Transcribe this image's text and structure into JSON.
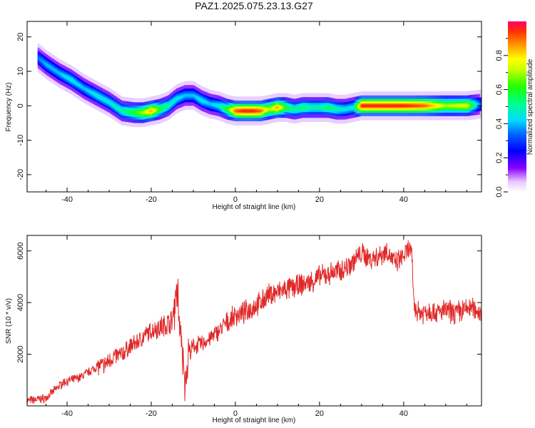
{
  "title": "PAZ1.2025.075.23.13.G27",
  "chart_data": [
    {
      "type": "heatmap",
      "xlabel": "Height of straight line (km)",
      "ylabel": "Frequency (Hz)",
      "xlim": [
        -49.5,
        58.5
      ],
      "ylim": [
        -25,
        24.5
      ],
      "xticks": [
        -40,
        -20,
        0,
        20,
        40
      ],
      "yticks": [
        -20,
        -10,
        0,
        10,
        20
      ],
      "colorbar": {
        "label": "Normalized spectral amplitude",
        "range": [
          0,
          1
        ],
        "ticks": [
          0.0,
          0.2,
          0.4,
          0.6,
          0.8
        ]
      },
      "ridge": {
        "x": [
          -47,
          -45,
          -42,
          -39,
          -36,
          -33,
          -30,
          -27,
          -24,
          -22,
          -20,
          -18,
          -16,
          -14,
          -12,
          -10,
          -8,
          -6,
          -4,
          -2,
          0,
          2,
          4,
          6,
          8,
          10,
          12,
          14,
          16,
          18,
          20,
          22,
          24,
          26,
          28,
          30,
          35,
          40,
          45,
          50,
          55,
          58.5
        ],
        "y": [
          14,
          12,
          9.5,
          7.5,
          5,
          3,
          1,
          -1.5,
          -2,
          -2,
          -1.5,
          -1,
          0,
          2,
          3,
          3,
          1.5,
          0.5,
          0,
          -1,
          -1.5,
          -1.5,
          -1.5,
          -1.5,
          -1,
          -0.5,
          -0.5,
          -1,
          -0.5,
          -0.5,
          -0.5,
          -0.5,
          -1,
          -1,
          -0.5,
          0,
          0,
          0,
          0,
          0,
          0,
          0.5
        ],
        "amplitude": [
          0.35,
          0.4,
          0.4,
          0.45,
          0.4,
          0.45,
          0.45,
          0.5,
          0.6,
          0.7,
          0.85,
          0.6,
          0.5,
          0.45,
          0.4,
          0.4,
          0.45,
          0.4,
          0.45,
          0.6,
          0.9,
          0.95,
          0.95,
          0.9,
          0.7,
          0.85,
          0.6,
          0.5,
          0.55,
          0.5,
          0.5,
          0.55,
          0.5,
          0.45,
          0.45,
          0.95,
          0.95,
          0.95,
          0.9,
          0.7,
          0.75,
          0.3
        ]
      }
    },
    {
      "type": "line",
      "xlabel": "Height of straight line (km)",
      "ylabel": "SNR (10 * v/v)",
      "xlim": [
        -49.5,
        58.5
      ],
      "ylim": [
        0,
        6600
      ],
      "xticks": [
        -40,
        -20,
        0,
        20,
        40
      ],
      "yticks": [
        2000,
        4000,
        6000
      ],
      "color": "#e02828",
      "series": [
        {
          "x": [
            -49.5,
            -47,
            -45,
            -43,
            -41,
            -39,
            -37,
            -35,
            -33,
            -31,
            -29,
            -27,
            -25,
            -23,
            -21,
            -19,
            -17,
            -15,
            -14,
            -13,
            -12.5,
            -12,
            -11.5,
            -11,
            -10,
            -8,
            -6,
            -4,
            -2,
            0,
            2,
            4,
            6,
            8,
            10,
            12,
            14,
            16,
            18,
            20,
            22,
            24,
            26,
            28,
            30,
            32,
            34,
            36,
            38,
            40,
            41.5,
            42,
            42.5,
            44,
            46,
            48,
            50,
            52,
            54,
            56,
            58.5
          ],
          "y": [
            200,
            250,
            300,
            600,
            900,
            1000,
            1100,
            1300,
            1500,
            1600,
            1900,
            2000,
            2300,
            2500,
            2800,
            3000,
            3100,
            3300,
            4500,
            3000,
            1800,
            700,
            1500,
            2000,
            2300,
            2400,
            2600,
            2900,
            3200,
            3500,
            3600,
            3800,
            4000,
            4300,
            4400,
            4500,
            4600,
            4700,
            4800,
            5000,
            5100,
            5200,
            5300,
            5600,
            5900,
            5700,
            5800,
            6000,
            5500,
            5800,
            6100,
            5600,
            3800,
            3600,
            3700,
            3600,
            3700,
            3600,
            3700,
            3800,
            3600
          ]
        }
      ]
    }
  ]
}
